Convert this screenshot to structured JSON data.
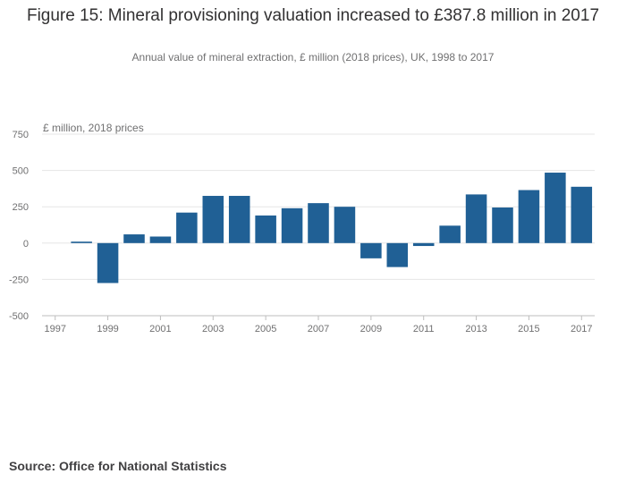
{
  "chart_data": {
    "type": "bar",
    "title": "Figure 15: Mineral provisioning valuation increased to £387.8 million in 2017",
    "subtitle": "Annual value of mineral extraction, £ million (2018 prices), UK, 1998 to 2017",
    "ylabel": "£ million, 2018 prices",
    "xlabel": "",
    "categories": [
      "1998",
      "1999",
      "2000",
      "2001",
      "2002",
      "2003",
      "2004",
      "2005",
      "2006",
      "2007",
      "2008",
      "2009",
      "2010",
      "2011",
      "2012",
      "2013",
      "2014",
      "2015",
      "2016",
      "2017"
    ],
    "values": [
      10,
      -275,
      60,
      45,
      210,
      325,
      325,
      190,
      240,
      275,
      250,
      -105,
      -165,
      -20,
      120,
      335,
      245,
      365,
      485,
      387.8
    ],
    "ylim": [
      -500,
      750
    ],
    "yticks": [
      "750",
      "500",
      "250",
      "0",
      "-250",
      "-500"
    ],
    "ytick_values": [
      750,
      500,
      250,
      0,
      -250,
      -500
    ],
    "xticks": [
      "1997",
      "1999",
      "2001",
      "2003",
      "2005",
      "2007",
      "2009",
      "2011",
      "2013",
      "2015",
      "2017"
    ],
    "xtick_values": [
      1997,
      1999,
      2001,
      2003,
      2005,
      2007,
      2009,
      2011,
      2013,
      2015,
      2017
    ],
    "xlim": [
      1996.5,
      2017.5
    ],
    "bar_color": "#206095",
    "grid_color": "#e6e6e6",
    "grid": true
  },
  "source": "Source: Office for National Statistics"
}
